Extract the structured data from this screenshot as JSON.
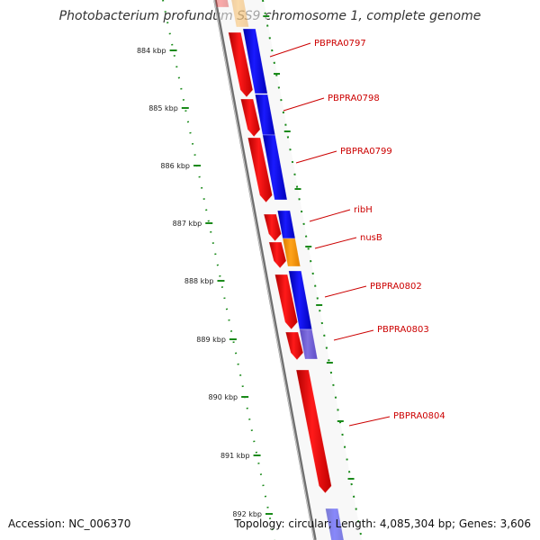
{
  "title": "Photobacterium profundum SS9 chromosome 1, complete genome",
  "accession": "Accession: NC_006370",
  "summary": "Topology: circular; Length: 4,085,304 bp; Genes: 3,606",
  "colors": {
    "forward_gene": "#ff0000",
    "reverse_gene": "#0000ff",
    "rna_gene": "#ff9900",
    "pseudo_gene": "#6f5ad6",
    "label": "#cc0000",
    "tick": "#1a8a1a",
    "backbone": "#8a8a8a"
  },
  "scale_ticks": [
    {
      "label": "884 kbp"
    },
    {
      "label": "885 kbp"
    },
    {
      "label": "886 kbp"
    },
    {
      "label": "887 kbp"
    },
    {
      "label": "888 kbp"
    },
    {
      "label": "889 kbp"
    },
    {
      "label": "890 kbp"
    },
    {
      "label": "891 kbp"
    },
    {
      "label": "892 kbp"
    }
  ],
  "gene_labels": [
    {
      "name": "PBPRA0797"
    },
    {
      "name": "PBPRA0798"
    },
    {
      "name": "PBPRA0799"
    },
    {
      "name": "ribH"
    },
    {
      "name": "nusB"
    },
    {
      "name": "PBPRA0802"
    },
    {
      "name": "PBPRA0803"
    },
    {
      "name": "PBPRA0804"
    }
  ]
}
